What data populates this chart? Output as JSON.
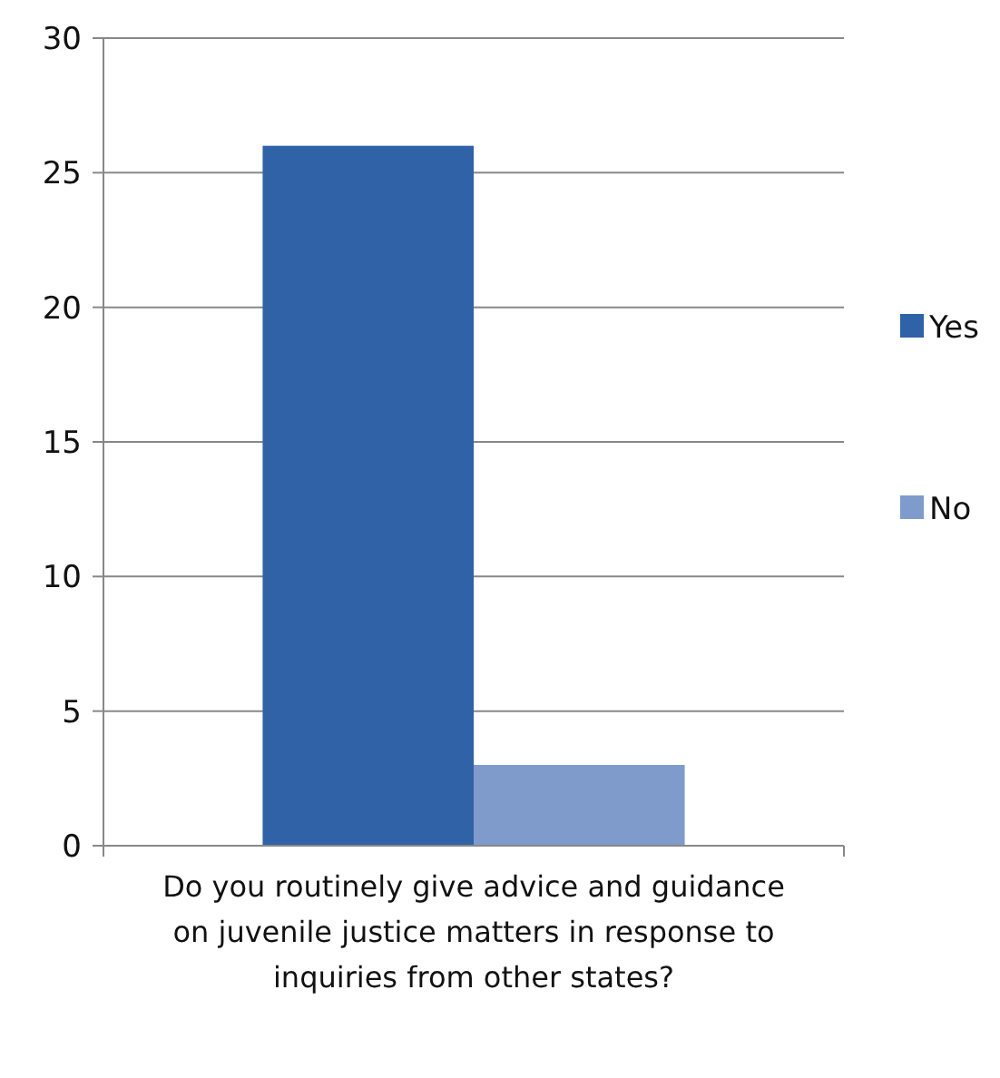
{
  "chart_data": {
    "type": "bar",
    "categories": [
      "Do you routinely give advice and guidance on juvenile justice matters in response to inquiries from other states?"
    ],
    "series": [
      {
        "name": "Yes",
        "color": "#2f62a6",
        "values": [
          26
        ]
      },
      {
        "name": "No",
        "color": "#7f9bcc",
        "values": [
          3
        ]
      }
    ],
    "ylim": [
      0,
      30
    ],
    "yticks": [
      0,
      5,
      10,
      15,
      20,
      25,
      30
    ],
    "grid": "y",
    "legend": "right"
  }
}
